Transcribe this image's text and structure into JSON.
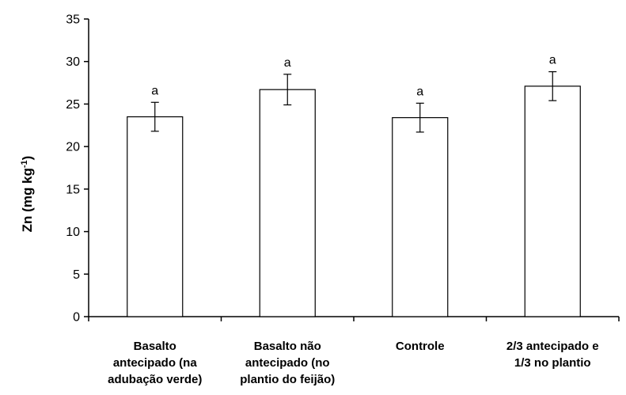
{
  "chart_data": {
    "type": "bar",
    "categories": [
      [
        "Basalto",
        "antecipado (na",
        "adubação verde)"
      ],
      [
        "Basalto não",
        "antecipado (no",
        "plantio do feijão)"
      ],
      [
        "Controle"
      ],
      [
        "2/3 antecipado e",
        "1/3 no plantio"
      ]
    ],
    "values": [
      23.5,
      26.7,
      23.4,
      27.1
    ],
    "errors": [
      1.7,
      1.8,
      1.7,
      1.7
    ],
    "annotations": [
      "a",
      "a",
      "a",
      "a"
    ],
    "ylabel": {
      "main": "Zn (mg kg",
      "sup": "-1",
      "close": ")"
    },
    "ylim": [
      0,
      35
    ],
    "yticks": [
      0,
      5,
      10,
      15,
      20,
      25,
      30,
      35
    ],
    "grid": false,
    "legend": "none",
    "colors": {
      "bar_fill": "#ffffff",
      "bar_stroke": "#000000",
      "axis": "#000000"
    }
  }
}
